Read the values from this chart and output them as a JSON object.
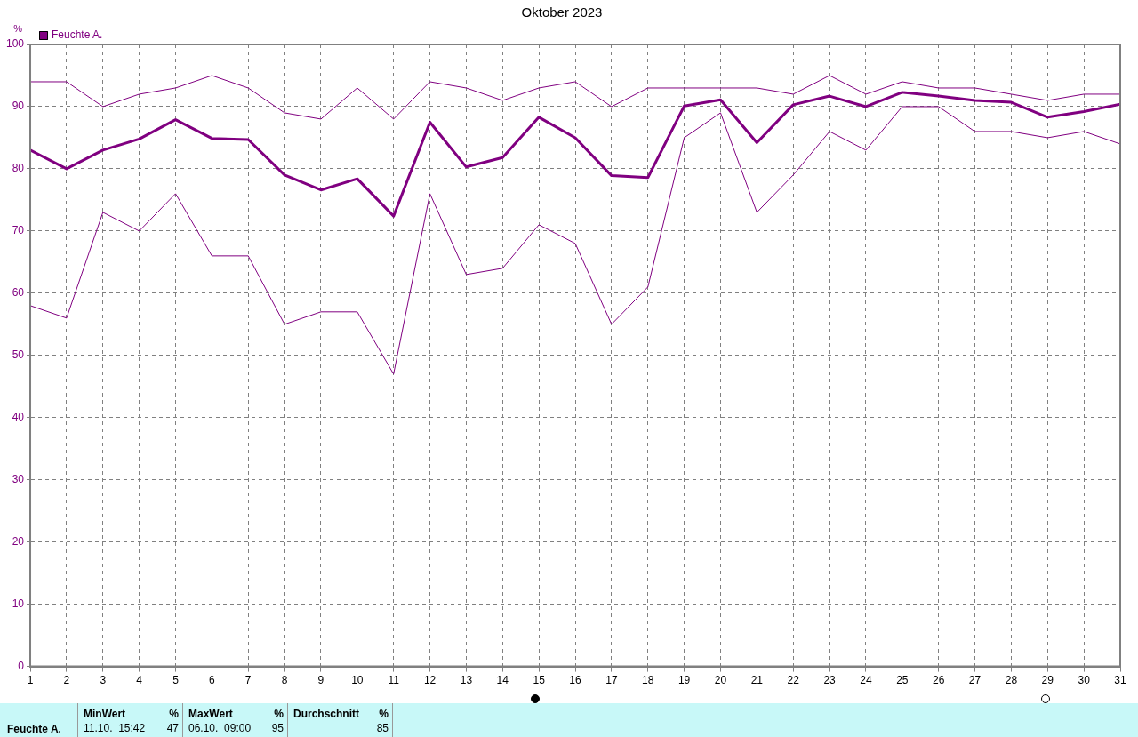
{
  "chart_data": {
    "type": "line",
    "title": "Oktober 2023",
    "ylabel": "%",
    "x": [
      1,
      2,
      3,
      4,
      5,
      6,
      7,
      8,
      9,
      10,
      11,
      12,
      13,
      14,
      15,
      16,
      17,
      18,
      19,
      20,
      21,
      22,
      23,
      24,
      25,
      26,
      27,
      28,
      29,
      30,
      31
    ],
    "series": [
      {
        "color": "#800080",
        "values": [
          94,
          94,
          90,
          92,
          93,
          95,
          93,
          89,
          88,
          93,
          88,
          94,
          93,
          91,
          93,
          94,
          90,
          93,
          93,
          93,
          93,
          92,
          95,
          92,
          94,
          93,
          93,
          92,
          91,
          92,
          92
        ]
      },
      {
        "name": "Feuchte A.",
        "color": "#800080",
        "values": [
          83,
          80,
          83,
          84.8,
          87.9,
          84.9,
          84.7,
          79,
          76.6,
          78.4,
          72.4,
          87.5,
          80.3,
          81.8,
          88.3,
          85,
          78.9,
          78.6,
          90.1,
          91.1,
          84.2,
          90.3,
          91.7,
          90,
          92.3,
          91.7,
          91,
          90.7,
          88.3,
          89.2,
          90.4
        ]
      },
      {
        "color": "#800080",
        "values": [
          58,
          56,
          73,
          70,
          76,
          66,
          66,
          55,
          57,
          57,
          47,
          76,
          63,
          64,
          71,
          68,
          55,
          61,
          85,
          89,
          73,
          79,
          86,
          83,
          90,
          90,
          86,
          86,
          85,
          86,
          84
        ]
      }
    ],
    "xlim": [
      1,
      31
    ],
    "xticks": [
      1,
      2,
      3,
      4,
      5,
      6,
      7,
      8,
      9,
      10,
      11,
      12,
      13,
      14,
      15,
      16,
      17,
      18,
      19,
      20,
      21,
      22,
      23,
      24,
      25,
      26,
      27,
      28,
      29,
      30,
      31
    ],
    "ylim": [
      0,
      100
    ],
    "yticks": [
      0,
      10,
      20,
      30,
      40,
      50,
      60,
      70,
      80,
      90,
      100
    ],
    "grid": true,
    "legend": "top left",
    "marker": "none",
    "line_style": "solid",
    "annotations": [
      "Feuchte A.",
      "MinWert",
      "%",
      "11.10.  15:42",
      "47",
      "MaxWert",
      "%",
      "06.10.  09:00",
      "95",
      "Durchschnitt",
      "%",
      "85"
    ]
  }
}
